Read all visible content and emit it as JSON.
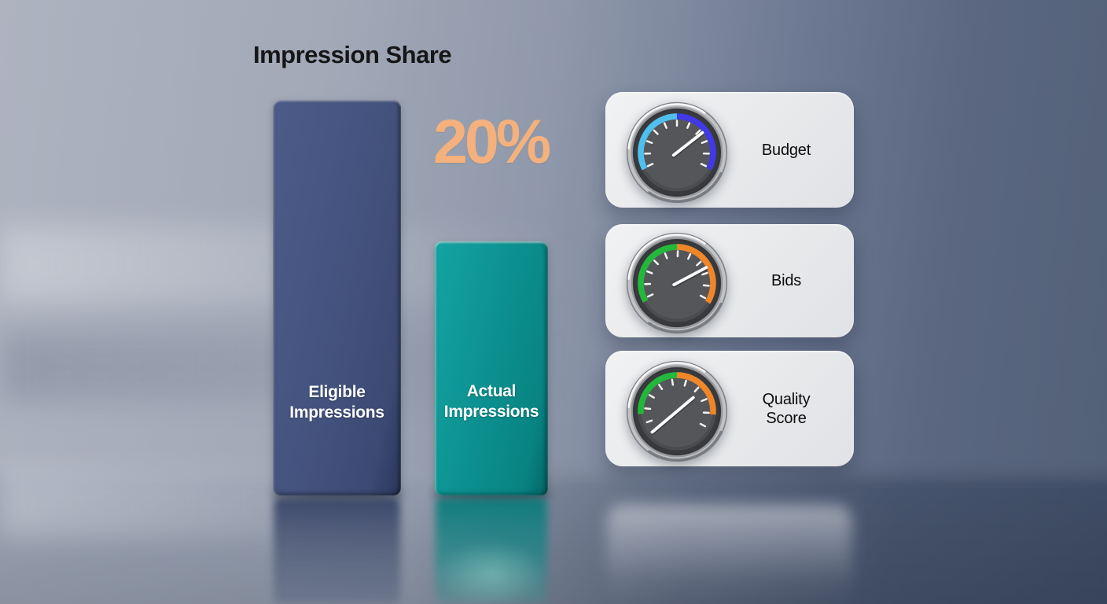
{
  "title": "Impression Share",
  "highlight": {
    "value": "20%",
    "color": "#f4b17d"
  },
  "bars": [
    {
      "name": "eligible-impressions",
      "label_lines": [
        "Eligible",
        "Impressions"
      ],
      "color": "#42527c"
    },
    {
      "name": "actual-impressions",
      "label_lines": [
        "Actual",
        "Impressions"
      ],
      "color": "#0a8f8d"
    }
  ],
  "cards": [
    {
      "label_lines": [
        "Budget"
      ],
      "gauge": {
        "left_color": "#4fc0ee",
        "right_color": "#4138e6",
        "start_deg": 207,
        "split_deg": 90,
        "end_deg": -27,
        "needle_deg": 38,
        "needle_tip_r": 38,
        "needle_tail_r": 5,
        "tick_start_deg": 205,
        "tick_end_deg": -25,
        "tick_count": 11
      }
    },
    {
      "label_lines": [
        "Bids"
      ],
      "gauge": {
        "left_color": "#23b83c",
        "right_color": "#f0862a",
        "start_deg": 210,
        "split_deg": 90,
        "end_deg": -32,
        "needle_deg": 28,
        "needle_tip_r": 39,
        "needle_tail_r": 4,
        "tick_start_deg": 205,
        "tick_end_deg": -28,
        "tick_count": 11
      }
    },
    {
      "label_lines": [
        "Quality",
        "Score"
      ],
      "gauge": {
        "left_color": "#23b83c",
        "right_color": "#f0862a",
        "start_deg": 184,
        "split_deg": 90,
        "end_deg": -5,
        "needle_deg": 40,
        "needle_tip_r": 25,
        "needle_tail_r": 38,
        "tick_start_deg": 200,
        "tick_end_deg": -28,
        "tick_count": 10
      }
    }
  ],
  "chart_data": {
    "type": "bar",
    "title": "Impression Share",
    "categories": [
      "Eligible Impressions",
      "Actual Impressions"
    ],
    "values_relative_height_pct": [
      100,
      64
    ],
    "annotation": "20%",
    "bar_colors": [
      "#42527c",
      "#0a8f8d"
    ],
    "legend_position": "none",
    "grid": false,
    "side_panel_gauges": [
      "Budget",
      "Bids",
      "Quality Score"
    ]
  }
}
